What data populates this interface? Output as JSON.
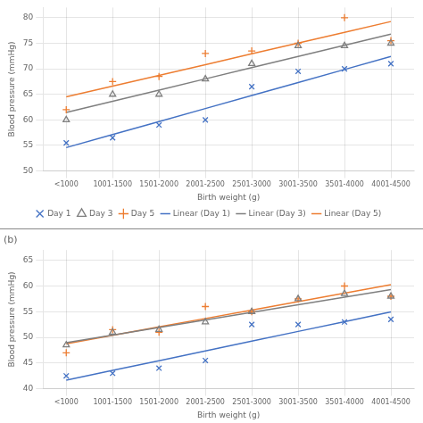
{
  "chart_data": [
    {
      "type": "scatter",
      "x_label": "Birth weight (g)",
      "y_label": "Blood pressure (mmHg)",
      "x": [
        1,
        2,
        3,
        4,
        5,
        6,
        7,
        8
      ],
      "xlim": [
        0.5,
        8.5
      ],
      "xticks": [
        {
          "value": 1,
          "label": "<1000"
        },
        {
          "value": 2,
          "label": "1001-1500"
        },
        {
          "value": 3,
          "label": "1501-2000"
        },
        {
          "value": 4,
          "label": "2001-2500"
        },
        {
          "value": 5,
          "label": "2501-3000"
        },
        {
          "value": 6,
          "label": "3001-3500"
        },
        {
          "value": 7,
          "label": "3501-4000"
        },
        {
          "value": 8,
          "label": "4001-4500"
        }
      ],
      "ylim": [
        50,
        82
      ],
      "yticks": [
        50,
        55,
        60,
        65,
        70,
        75,
        80
      ],
      "grid": true,
      "legend": "bottom",
      "series": [
        {
          "name": "Day 1",
          "type": "scatter",
          "marker": "x",
          "color": "#4472C4",
          "values": [
            55.5,
            56.5,
            59,
            60,
            66.5,
            69.5,
            70,
            71
          ]
        },
        {
          "name": "Day 3",
          "type": "scatter",
          "marker": "triangle",
          "color": "#7F7F7F",
          "values": [
            60,
            65,
            65,
            68,
            71,
            74.5,
            74.5,
            75
          ]
        },
        {
          "name": "Day 5",
          "type": "scatter",
          "marker": "plus",
          "color": "#ED7D31",
          "values": [
            62,
            67.5,
            68.5,
            73,
            73.5,
            75,
            80,
            75.5
          ]
        },
        {
          "name": "Linear (Day 1)",
          "type": "line",
          "color": "#4472C4",
          "values": [
            54.5833,
            57.131,
            59.6786,
            62.2262,
            64.7738,
            67.3214,
            69.869,
            72.4167
          ]
        },
        {
          "name": "Linear (Day 3)",
          "type": "line",
          "color": "#7F7F7F",
          "values": [
            61.4583,
            63.6488,
            65.8393,
            68.0298,
            70.2202,
            72.4107,
            74.6012,
            76.7917
          ]
        },
        {
          "name": "Linear (Day 5)",
          "type": "line",
          "color": "#ED7D31",
          "values": [
            64.5,
            66.6071,
            68.7143,
            70.8214,
            72.9286,
            75.0357,
            77.1429,
            79.25
          ]
        }
      ]
    },
    {
      "type": "scatter",
      "title": "(b)",
      "x_label": "Birth weight (g)",
      "y_label": "Blood pressure (mmHg)",
      "x": [
        1,
        2,
        3,
        4,
        5,
        6,
        7,
        8
      ],
      "xlim": [
        0.5,
        8.5
      ],
      "xticks": [
        {
          "value": 1,
          "label": "<1000"
        },
        {
          "value": 2,
          "label": "1001-1500"
        },
        {
          "value": 3,
          "label": "1501-2000"
        },
        {
          "value": 4,
          "label": "2001-2500"
        },
        {
          "value": 5,
          "label": "2501-3000"
        },
        {
          "value": 6,
          "label": "3001-3500"
        },
        {
          "value": 7,
          "label": "3501-4000"
        },
        {
          "value": 8,
          "label": "4001-4500"
        }
      ],
      "ylim": [
        40,
        67
      ],
      "yticks": [
        40,
        45,
        50,
        55,
        60,
        65
      ],
      "grid": true,
      "series": [
        {
          "name": "Day 1",
          "type": "scatter",
          "marker": "x",
          "color": "#4472C4",
          "values": [
            42.5,
            43,
            44,
            45.5,
            52.5,
            52.5,
            53,
            53.5
          ]
        },
        {
          "name": "Day 3",
          "type": "scatter",
          "marker": "triangle",
          "color": "#7F7F7F",
          "values": [
            48.5,
            51,
            51.5,
            53,
            55,
            57.5,
            58.5,
            58
          ]
        },
        {
          "name": "Day 5",
          "type": "scatter",
          "marker": "plus",
          "color": "#ED7D31",
          "values": [
            47,
            51.5,
            51,
            56,
            55,
            57.5,
            60,
            58
          ]
        },
        {
          "name": "Linear (Day 1)",
          "type": "line",
          "color": "#4472C4",
          "values": [
            41.6667,
            43.5655,
            45.4643,
            47.3631,
            49.2619,
            51.1607,
            53.0595,
            54.9583
          ]
        },
        {
          "name": "Linear (Day 3)",
          "type": "line",
          "color": "#7F7F7F",
          "values": [
            48.9583,
            50.4345,
            51.9107,
            53.3869,
            54.8631,
            56.3393,
            57.8155,
            59.2917
          ]
        },
        {
          "name": "Linear (Day 5)",
          "type": "line",
          "color": "#ED7D31",
          "values": [
            48.75,
            50.3929,
            52.0357,
            53.6786,
            55.3214,
            56.9643,
            58.6071,
            60.25
          ]
        }
      ]
    }
  ]
}
